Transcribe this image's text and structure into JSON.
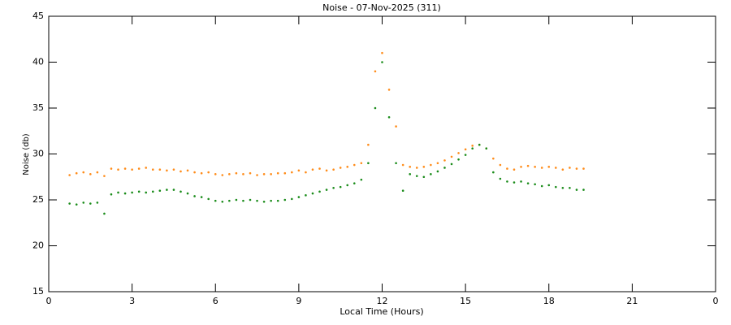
{
  "chart_data": {
    "type": "scatter",
    "title": "Noise - 07-Nov-2025 (311)",
    "x_label": "Local Time (Hours)",
    "y_label": "Noise (db)",
    "xlim": [
      0,
      24
    ],
    "xticks": [
      0,
      3,
      6,
      9,
      12,
      15,
      18,
      21,
      {
        "value": 24,
        "label": "0"
      }
    ],
    "ylim": [
      15,
      45
    ],
    "yticks": [
      15,
      20,
      25,
      30,
      35,
      40,
      45
    ],
    "x": [
      0.75,
      1,
      1.25,
      1.5,
      1.75,
      2,
      2.25,
      2.5,
      2.75,
      3,
      3.25,
      3.5,
      3.75,
      4,
      4.25,
      4.5,
      4.75,
      5,
      5.25,
      5.5,
      5.75,
      6,
      6.25,
      6.5,
      6.75,
      7,
      7.25,
      7.5,
      7.75,
      8,
      8.25,
      8.5,
      8.75,
      9,
      9.25,
      9.5,
      9.75,
      10,
      10.25,
      10.5,
      10.75,
      11,
      11.25,
      11.5,
      11.75,
      12,
      12.25,
      12.5,
      12.75,
      13,
      13.25,
      13.5,
      13.75,
      14,
      14.25,
      14.5,
      14.75,
      15,
      15.25,
      15.5,
      15.75,
      16,
      16.25,
      16.5,
      16.75,
      17,
      17.25,
      17.5,
      17.75,
      18,
      18.25,
      18.5,
      18.75,
      19,
      19.25
    ],
    "series": [
      {
        "color": "#ff8c1a",
        "values": [
          27.7,
          27.9,
          28,
          27.8,
          28,
          27.6,
          28.4,
          28.3,
          28.4,
          28.3,
          28.4,
          28.5,
          28.3,
          28.3,
          28.2,
          28.3,
          28.1,
          28.2,
          28,
          27.9,
          28,
          27.8,
          27.7,
          27.8,
          27.9,
          27.8,
          27.9,
          27.7,
          27.8,
          27.8,
          27.9,
          27.9,
          28,
          28.2,
          28,
          28.3,
          28.4,
          28.2,
          28.3,
          28.5,
          28.6,
          28.8,
          29,
          31,
          39,
          41,
          37,
          33,
          28.8,
          28.6,
          28.5,
          28.6,
          28.8,
          29,
          29.3,
          29.7,
          30.1,
          30.5,
          30.9,
          31,
          30.6,
          29.5,
          28.8,
          28.4,
          28.3,
          28.6,
          28.7,
          28.6,
          28.5,
          28.6,
          28.5,
          28.3,
          28.5,
          28.4,
          28.4
        ]
      },
      {
        "color": "#1a8c1a",
        "values": [
          24.6,
          24.5,
          24.7,
          24.6,
          24.7,
          23.5,
          25.6,
          25.8,
          25.7,
          25.8,
          25.9,
          25.8,
          25.9,
          26,
          26.1,
          26.1,
          25.9,
          25.7,
          25.4,
          25.3,
          25.1,
          24.9,
          24.8,
          24.9,
          25,
          24.9,
          25,
          24.9,
          24.8,
          24.9,
          24.9,
          25,
          25.1,
          25.3,
          25.5,
          25.7,
          25.9,
          26.1,
          26.3,
          26.4,
          26.6,
          26.8,
          27.2,
          29,
          35,
          40,
          34,
          29,
          26,
          27.8,
          27.6,
          27.5,
          27.8,
          28.1,
          28.5,
          28.9,
          29.4,
          29.9,
          30.6,
          31,
          30.6,
          28,
          27.3,
          27,
          26.9,
          27,
          26.8,
          26.7,
          26.5,
          26.6,
          26.4,
          26.3,
          26.3,
          26.1,
          26.1
        ]
      }
    ]
  }
}
